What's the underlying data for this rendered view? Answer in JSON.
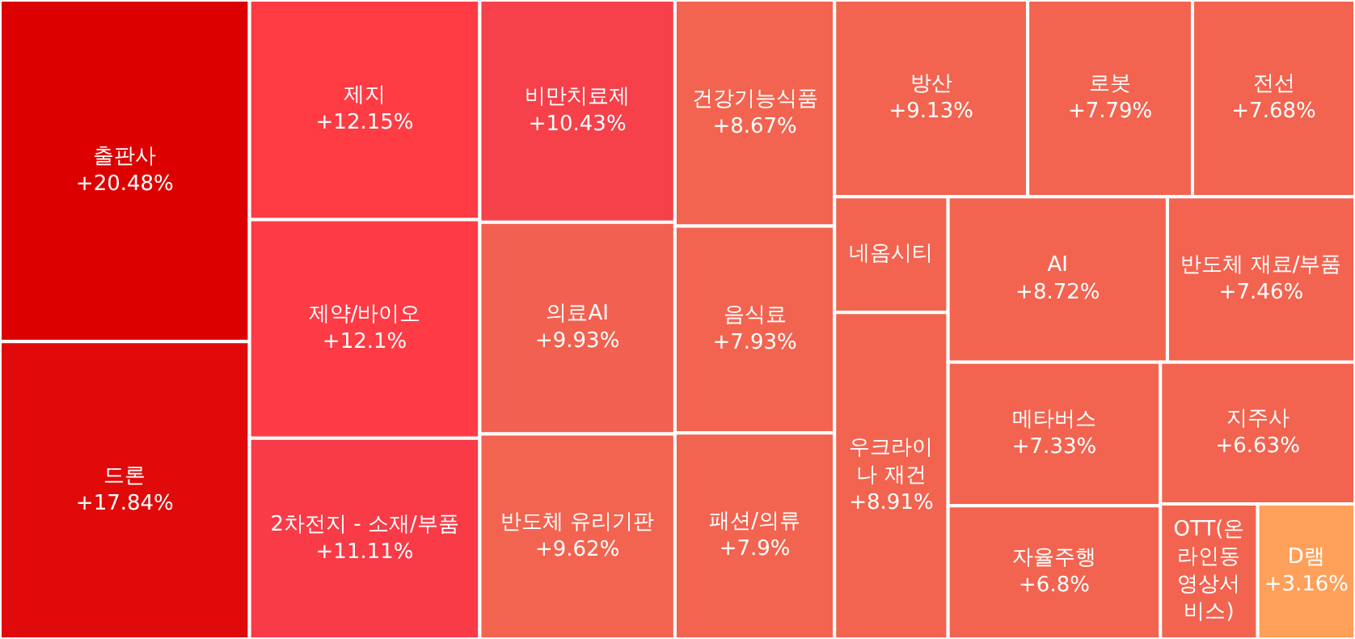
{
  "chart_data": {
    "type": "other",
    "categories": [
      "출판사",
      "드론",
      "제지",
      "제약/바이오",
      "2차전지 - 소재/부품",
      "비만치료제",
      "의료AI",
      "반도체 유리기판",
      "건강기능식품",
      "음식료",
      "패션/의류",
      "방산",
      "로봇",
      "전선",
      "네옴시티",
      "우크라이나 재건",
      "AI",
      "반도체 재료/부품",
      "메타버스",
      "자율주행",
      "지주사",
      "OTT(온라인동영상서비스)",
      "D램"
    ],
    "values": [
      20.48,
      17.84,
      12.15,
      12.1,
      11.11,
      10.43,
      9.93,
      9.62,
      8.67,
      7.93,
      7.9,
      9.13,
      7.79,
      7.68,
      null,
      8.91,
      8.72,
      7.46,
      7.33,
      6.8,
      6.63,
      null,
      3.16
    ],
    "value_labels": [
      "+20.48%",
      "+17.84%",
      "+12.15%",
      "+12.1%",
      "+11.11%",
      "+10.43%",
      "+9.93%",
      "+9.62%",
      "+8.67%",
      "+7.93%",
      "+7.9%",
      "+9.13%",
      "+7.79%",
      "+7.68%",
      null,
      "+8.91%",
      "+8.72%",
      "+7.46%",
      "+7.33%",
      "+6.8%",
      "+6.63%",
      null,
      "+3.16%"
    ],
    "colors": [
      "#dd0000",
      "#e00a0a",
      "#ff3b44",
      "#ff3b45",
      "#f93a47",
      "#f6404a",
      "#f26150",
      "#f26450",
      "#f26450",
      "#f26450",
      "#f26450",
      "#f26450",
      "#f26450",
      "#f26450",
      "#f26450",
      "#f26450",
      "#f26450",
      "#f26450",
      "#f26450",
      "#f26450",
      "#f26450",
      "#f26450",
      "#ffa05a"
    ]
  }
}
